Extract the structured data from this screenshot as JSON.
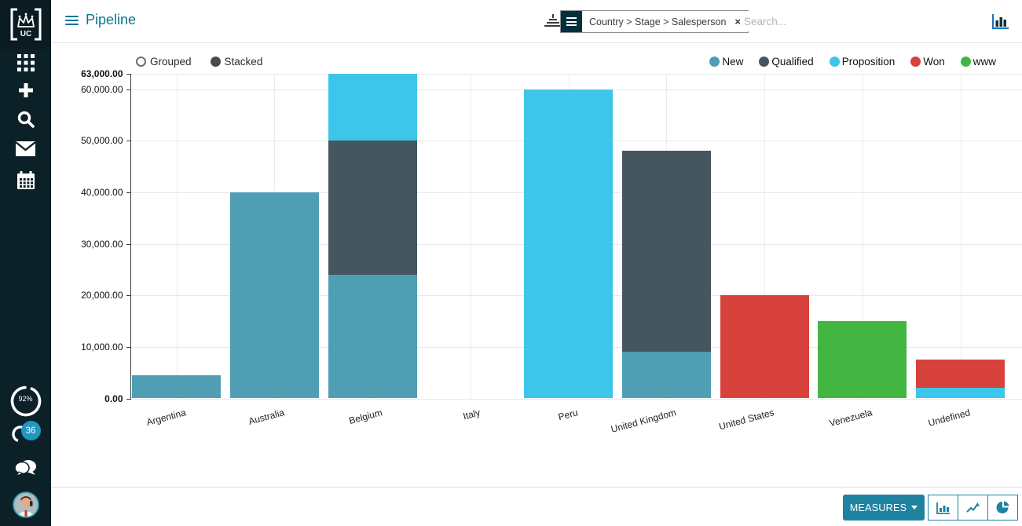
{
  "app": {
    "title": "Pipeline"
  },
  "topbar": {
    "facet_label": "Country > Stage > Salesperson",
    "facet_remove": "×",
    "search_placeholder": "Search..."
  },
  "sidebar": {
    "logo_text": "UC",
    "progress_label": "92%",
    "notification_count": "36"
  },
  "chart_controls": {
    "grouped_label": "Grouped",
    "stacked_label": "Stacked",
    "selected": "Stacked"
  },
  "footer": {
    "measures_label": "MEASURES"
  },
  "colors": {
    "accent": "#1e83a1",
    "title": "#0d7490",
    "sidebar_bg": "#0c2127",
    "facet_icon_bg": "#00303c",
    "badge": "#2196c0",
    "grid": "#e8e8e8"
  },
  "chart_data": {
    "type": "bar",
    "stacked": true,
    "title": "Pipeline",
    "xlabel": "",
    "ylabel": "",
    "grid": true,
    "legend_position": "top-right",
    "ylim": [
      0,
      63000
    ],
    "categories": [
      "Argentina",
      "Australia",
      "Belgium",
      "Italy",
      "Peru",
      "United Kingdom",
      "United States",
      "Venezuela",
      "Undefined"
    ],
    "series": [
      {
        "name": "New",
        "color": "#4f9eb3",
        "values": [
          4500,
          40000,
          24000,
          0,
          0,
          9000,
          0,
          0,
          0
        ]
      },
      {
        "name": "Qualified",
        "color": "#45565f",
        "values": [
          0,
          0,
          26000,
          0,
          0,
          39000,
          0,
          0,
          0
        ]
      },
      {
        "name": "Proposition",
        "color": "#3dc5ea",
        "values": [
          0,
          0,
          13000,
          0,
          60000,
          0,
          0,
          0,
          2000
        ]
      },
      {
        "name": "Won",
        "color": "#d8423d",
        "values": [
          0,
          0,
          0,
          0,
          0,
          0,
          20000,
          0,
          5600
        ]
      },
      {
        "name": "www",
        "color": "#42b542",
        "values": [
          0,
          0,
          0,
          0,
          0,
          0,
          0,
          15000,
          0
        ]
      }
    ],
    "yticks": [
      {
        "value": 0,
        "label": "0.00",
        "bold": true
      },
      {
        "value": 10000,
        "label": "10,000.00"
      },
      {
        "value": 20000,
        "label": "20,000.00"
      },
      {
        "value": 30000,
        "label": "30,000.00"
      },
      {
        "value": 40000,
        "label": "40,000.00"
      },
      {
        "value": 50000,
        "label": "50,000.00"
      },
      {
        "value": 60000,
        "label": "60,000.00"
      },
      {
        "value": 63000,
        "label": "63,000.00",
        "bold": true
      }
    ]
  }
}
